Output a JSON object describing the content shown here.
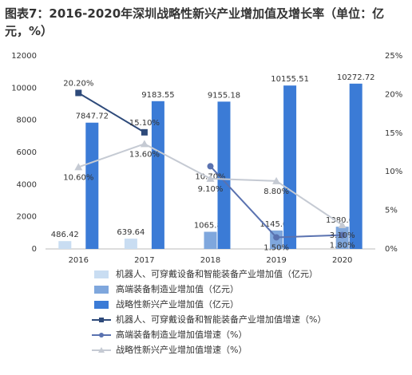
{
  "chart_data": {
    "type": "bar-line",
    "title": "图表7：2016-2020年深圳战略性新兴产业增加值及增长率（单位：亿元，%）",
    "categories": [
      "2016",
      "2017",
      "2018",
      "2019",
      "2020"
    ],
    "ylim": [
      0,
      12000
    ],
    "yticks": [
      0,
      2000,
      4000,
      6000,
      8000,
      10000,
      12000
    ],
    "y2lim": [
      0,
      25
    ],
    "y2ticks": [
      {
        "value": 0,
        "label": "0%"
      },
      {
        "value": 5,
        "label": "5%"
      },
      {
        "value": 10,
        "label": "10%"
      },
      {
        "value": 15,
        "label": "15%"
      },
      {
        "value": 20,
        "label": "20%"
      },
      {
        "value": 25,
        "label": "25%"
      }
    ],
    "grid": false,
    "series": [
      {
        "name": "机器人、可穿戴设备和智能装备产业增加值（亿元）",
        "kind": "bar",
        "color": "#c9ddf2",
        "values": [
          486.42,
          639.64,
          null,
          null,
          null
        ]
      },
      {
        "name": "高端装备制造业增加值（亿元）",
        "kind": "bar",
        "color": "#7fa7dd",
        "values": [
          null,
          null,
          1065.82,
          1145.07,
          1380.69
        ]
      },
      {
        "name": "战略性新兴产业增加值（亿元）",
        "kind": "bar",
        "color": "#3b7bd6",
        "values": [
          7847.72,
          9183.55,
          9155.18,
          10155.51,
          10272.72
        ]
      },
      {
        "name": "机器人、可穿戴设备和智能装备产业增加值增速（%）",
        "kind": "line",
        "axis": "y2",
        "color": "#2e4a7a",
        "marker": "square",
        "values": [
          20.2,
          15.1,
          null,
          null,
          null
        ],
        "value_labels": [
          "20.20%",
          "15.10%",
          null,
          null,
          null
        ]
      },
      {
        "name": "高端装备制造业增加值增速（%）",
        "kind": "line",
        "axis": "y2",
        "color": "#5a72b0",
        "marker": "circle",
        "values": [
          null,
          null,
          10.7,
          1.5,
          1.8
        ],
        "value_labels": [
          null,
          null,
          "10.70%",
          "1.50%",
          "1.80%"
        ]
      },
      {
        "name": "战略性新兴产业增加值增速（%）",
        "kind": "line",
        "axis": "y2",
        "color": "#c5cad3",
        "marker": "triangle",
        "values": [
          10.6,
          13.6,
          9.1,
          8.8,
          3.1
        ],
        "value_labels": [
          "10.60%",
          "13.60%",
          "9.10%",
          "8.80%",
          "3.10%"
        ]
      }
    ]
  }
}
